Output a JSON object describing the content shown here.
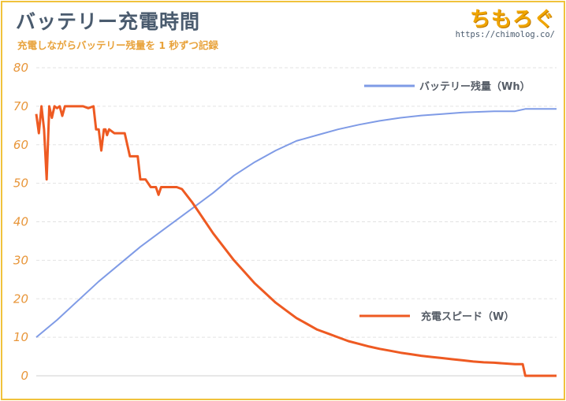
{
  "header": {
    "title": "バッテリー充電時間",
    "subtitle": "充電しながらバッテリー残量を 1 秒ずつ記録",
    "logo_text": "ちもろぐ",
    "logo_url": "https://chimolog.co/"
  },
  "colors": {
    "battery_series": "#7f9be6",
    "charge_series": "#ee5a22",
    "frame": "#f0c23c",
    "tick": "#e8963a",
    "title": "#4a5b6e"
  },
  "chart_data": {
    "type": "line",
    "title": "バッテリー充電時間",
    "subtitle": "充電しながらバッテリー残量を 1 秒ずつ記録",
    "xlabel": "",
    "ylabel": "",
    "ylim": [
      0,
      80
    ],
    "xlim": [
      0,
      100
    ],
    "yticks": [
      "0",
      "10",
      "20",
      "30",
      "40",
      "50",
      "60",
      "70",
      "80"
    ],
    "grid": "horizontal dashed",
    "legend": "inline labels",
    "series": [
      {
        "name": "バッテリー残量（Wh）",
        "x": [
          0,
          4,
          8,
          12,
          16,
          20,
          24,
          28,
          30,
          34,
          38,
          42,
          46,
          50,
          54,
          58,
          62,
          66,
          70,
          74,
          78,
          82,
          86,
          88,
          92,
          94,
          100
        ],
        "values": [
          10,
          14.5,
          19.5,
          24.5,
          29,
          33.5,
          37.5,
          41.5,
          43.5,
          47.5,
          52,
          55.5,
          58.5,
          61,
          62.5,
          64,
          65.2,
          66.2,
          67,
          67.6,
          68,
          68.4,
          68.6,
          68.7,
          68.7,
          69.3,
          69.3
        ]
      },
      {
        "name": "充電スピード（W）",
        "x": [
          0,
          0.5,
          1,
          1.5,
          2,
          2.5,
          3,
          3.5,
          4,
          4.5,
          5,
          5.5,
          6,
          7,
          8,
          9,
          10,
          11,
          11.5,
          12,
          12.5,
          13,
          13.3,
          13.6,
          14,
          15,
          16,
          17,
          18,
          18.5,
          19,
          19.5,
          20,
          21,
          22,
          23,
          23.5,
          24,
          25,
          26,
          27,
          28,
          30,
          32,
          34,
          36,
          38,
          40,
          42,
          44,
          46,
          48,
          50,
          52,
          54,
          56,
          58,
          60,
          62,
          64,
          66,
          68,
          70,
          72,
          74,
          76,
          78,
          80,
          82,
          84,
          86,
          88,
          92,
          93.5,
          94,
          100
        ],
        "values": [
          68,
          63,
          70,
          64,
          51,
          70,
          67,
          70,
          69.5,
          70,
          67.5,
          70,
          70,
          70,
          70,
          70,
          69.5,
          70,
          64,
          64,
          58.5,
          64,
          64,
          62.5,
          64,
          63,
          63,
          63,
          57,
          57,
          57,
          57,
          51,
          51,
          49,
          49,
          47,
          49,
          49,
          49,
          49,
          48.5,
          45,
          41,
          37,
          33.5,
          30,
          27,
          24,
          21.5,
          19,
          17,
          15,
          13.5,
          12,
          11,
          10,
          9,
          8.3,
          7.6,
          7,
          6.5,
          6,
          5.6,
          5.2,
          4.9,
          4.6,
          4.3,
          4,
          3.7,
          3.5,
          3.4,
          3,
          3,
          0,
          0
        ]
      }
    ]
  }
}
